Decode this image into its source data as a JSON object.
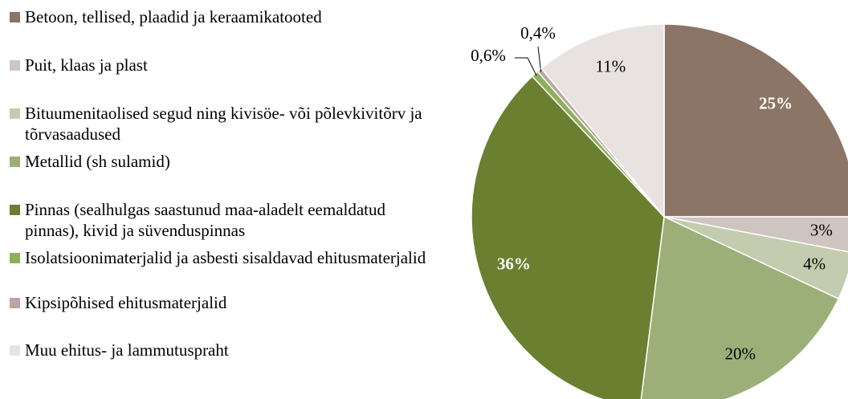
{
  "chart_data": {
    "type": "pie",
    "series": [
      {
        "names": [
          "Betoon, tellised, plaadid ja keraamikatooted",
          "Puit, klaas ja plast",
          "Bituumenitaolised segud ning kivisöe- või põlevkivitõrv ja tõrvasaadused",
          "Metallid (sh sulamid)",
          "Pinnas (sealhulgas saastunud maa-aladelt eemaldatud pinnas), kivid ja süvenduspinnas",
          "Isolatsioonimaterjalid ja asbesti sisaldavad ehitusmaterjalid",
          "Kipsipõhised ehitusmaterjalid",
          "Muu ehitus- ja lammutuspraht"
        ],
        "values": [
          25,
          3,
          4,
          20,
          36,
          0.6,
          0.4,
          11
        ],
        "value_labels": [
          "25%",
          "3%",
          "4%",
          "20%",
          "36%",
          "0,6%",
          "0,4%",
          "11%"
        ],
        "colors": [
          "#8b7566",
          "#cfc5c0",
          "#c3ccae",
          "#9caf78",
          "#6b7f31",
          "#8db05a",
          "#b8a8a0",
          "#e8e3e0"
        ]
      }
    ],
    "legend": "left"
  }
}
